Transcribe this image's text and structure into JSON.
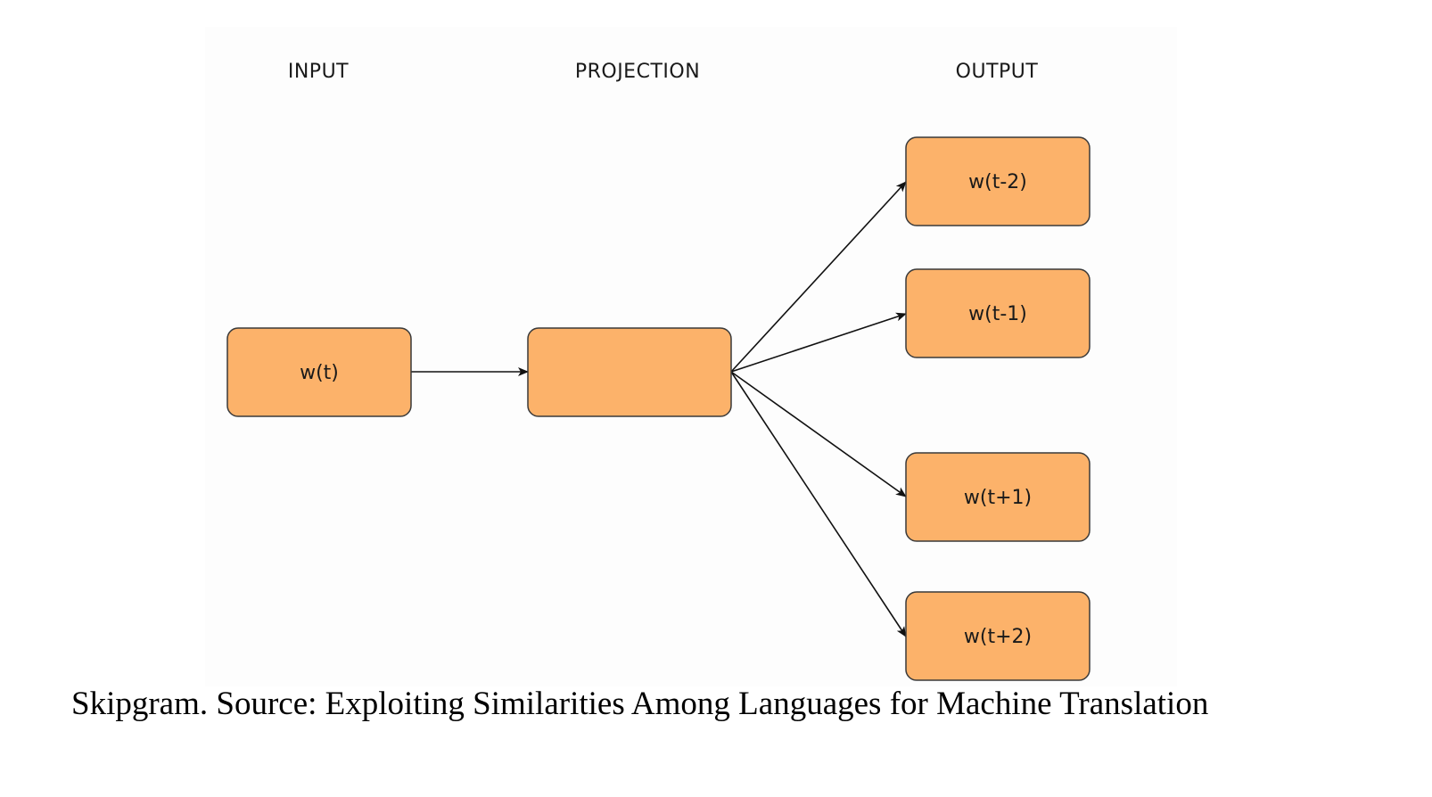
{
  "columns": {
    "input": "INPUT",
    "projection": "PROJECTION",
    "output": "OUTPUT"
  },
  "nodes": {
    "input": "w(t)",
    "projection": "",
    "outputs": [
      "w(t-2)",
      "w(t-1)",
      "w(t+1)",
      "w(t+2)"
    ]
  },
  "edges": [
    {
      "from": "input",
      "to": "projection"
    },
    {
      "from": "projection",
      "to": "w(t-2)"
    },
    {
      "from": "projection",
      "to": "w(t-1)"
    },
    {
      "from": "projection",
      "to": "w(t+1)"
    },
    {
      "from": "projection",
      "to": "w(t+2)"
    }
  ],
  "caption": "Skipgram. Source: Exploiting Similarities Among Languages for Machine Translation",
  "colors": {
    "node_fill": "#fcb26a",
    "node_stroke": "#3a3a3a",
    "edge": "#111111",
    "background": "#fdfdfd"
  }
}
